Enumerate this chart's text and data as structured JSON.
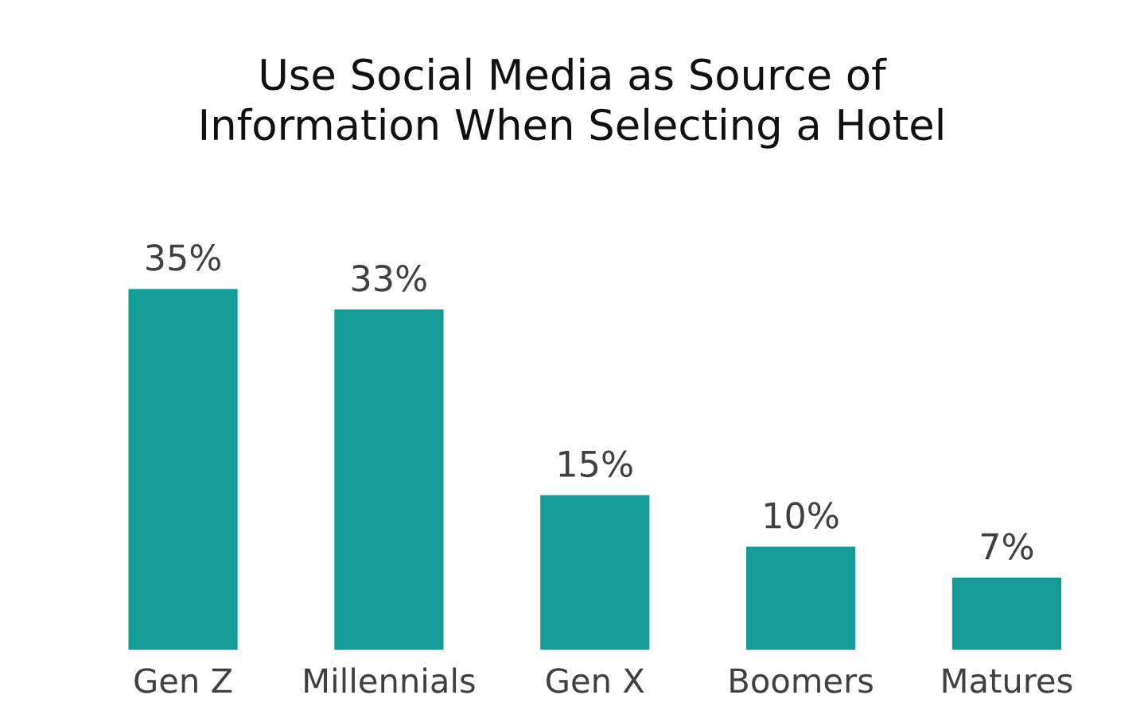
{
  "chart_data": {
    "type": "bar",
    "title": "Use Social Media as Source of\nInformation When Selecting a Hotel",
    "categories": [
      "Gen Z",
      "Millennials",
      "Gen X",
      "Boomers",
      "Matures"
    ],
    "values": [
      35,
      33,
      15,
      10,
      7
    ],
    "value_labels": [
      "35%",
      "33%",
      "15%",
      "10%",
      "7%"
    ],
    "color": "#169c96",
    "grid": false,
    "legend": false
  }
}
